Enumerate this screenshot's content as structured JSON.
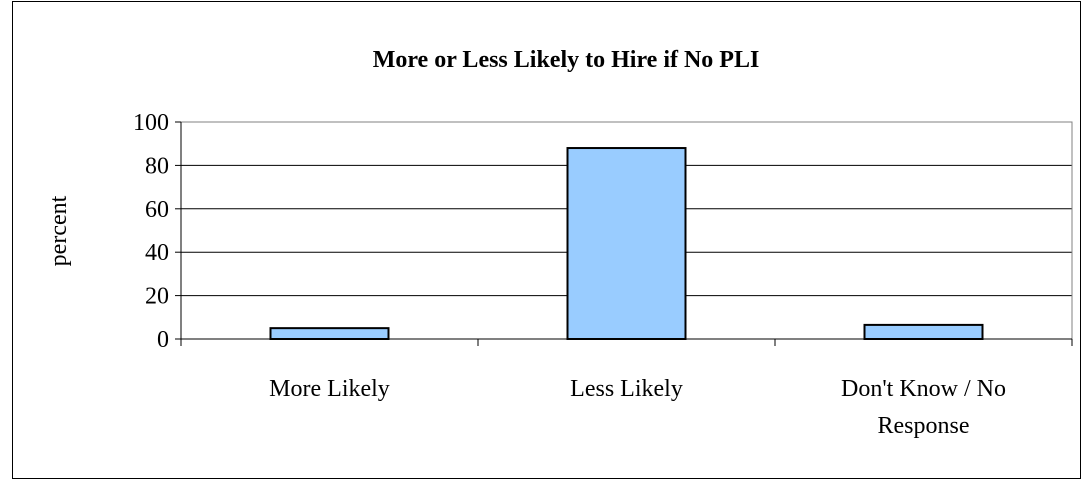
{
  "chart_data": {
    "type": "bar",
    "title": "More or Less Likely to Hire if No PLI",
    "xlabel": "",
    "ylabel": "percent",
    "categories": [
      [
        "More Likely"
      ],
      [
        "Less Likely"
      ],
      [
        "Don't Know / No",
        "Response"
      ]
    ],
    "values": [
      5,
      88,
      6.5
    ],
    "ylim": [
      0,
      100
    ],
    "yticks": [
      0,
      20,
      40,
      60,
      80,
      100
    ],
    "grid": true,
    "legend": "none",
    "colors": {
      "bar_fill": "#99ccff",
      "bar_stroke": "#000000",
      "plot_border": "#808080",
      "gridline": "#000000"
    }
  }
}
